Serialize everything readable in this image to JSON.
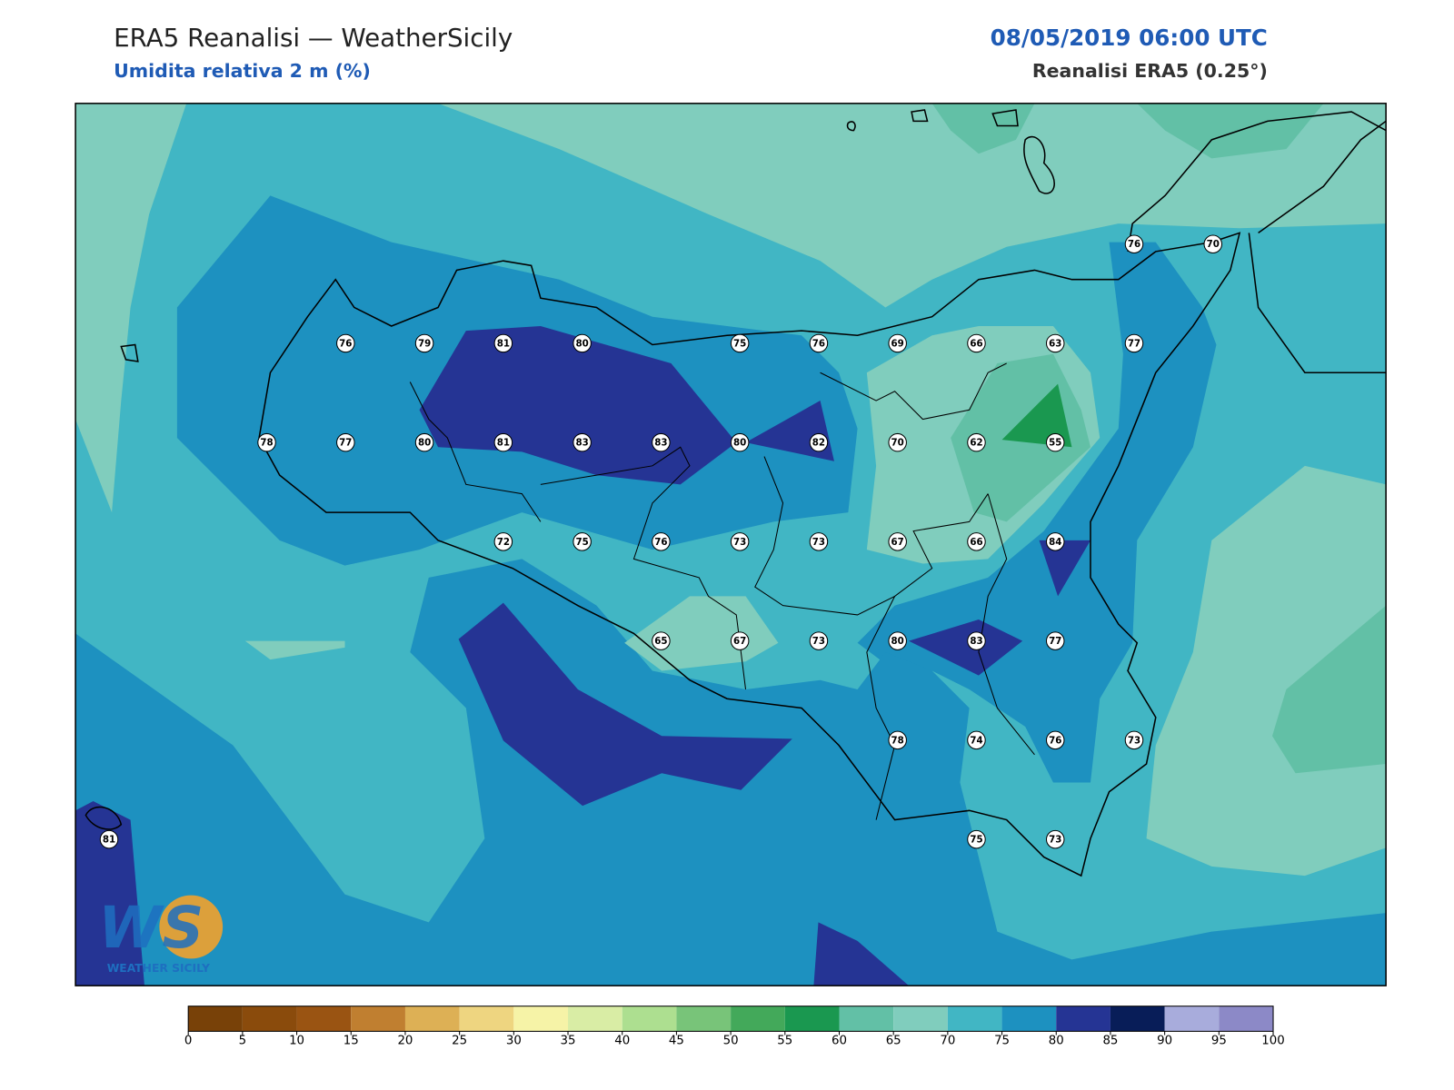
{
  "header": {
    "title": "ERA5 Reanalisi — WeatherSicily",
    "subtitle": "Umidita relativa 2 m (%)",
    "date": "08/05/2019 06:00 UTC",
    "source": "Reanalisi ERA5 (0.25°)"
  },
  "points": [
    [
      null,
      null,
      null,
      null,
      null,
      null,
      null,
      null,
      null,
      null,
      null,
      null,
      null,
      76,
      70
    ],
    [
      null,
      null,
      null,
      76,
      79,
      81,
      80,
      null,
      75,
      76,
      69,
      66,
      63,
      77,
      null
    ],
    [
      null,
      null,
      78,
      77,
      80,
      81,
      83,
      83,
      80,
      82,
      70,
      62,
      55,
      null,
      null
    ],
    [
      null,
      null,
      null,
      null,
      null,
      72,
      75,
      76,
      73,
      73,
      67,
      66,
      84,
      null,
      null
    ],
    [
      null,
      null,
      null,
      null,
      null,
      null,
      null,
      65,
      67,
      73,
      80,
      83,
      77,
      null,
      null
    ],
    [
      null,
      null,
      null,
      null,
      null,
      null,
      null,
      null,
      null,
      null,
      78,
      74,
      76,
      73,
      null
    ],
    [
      81,
      null,
      null,
      null,
      null,
      null,
      null,
      null,
      null,
      null,
      null,
      75,
      73,
      null,
      null
    ]
  ],
  "colorbar": {
    "ticks": [
      0,
      5,
      10,
      15,
      20,
      25,
      30,
      35,
      40,
      45,
      50,
      55,
      60,
      65,
      70,
      75,
      80,
      85,
      90,
      95,
      100
    ],
    "colors": [
      "#784108",
      "#8a4b0c",
      "#9a5412",
      "#c07f30",
      "#ddb055",
      "#eed580",
      "#f6f3a7",
      "#d9eda5",
      "#addf90",
      "#78c479",
      "#43a95a",
      "#1a9850",
      "#62c0a6",
      "#80cdbd",
      "#41b6c4",
      "#1d91c0",
      "#253494",
      "#081d58",
      "#a8acdc",
      "#8c89c7"
    ]
  },
  "logo": {
    "mark": "WS",
    "caption": "WEATHER SICILY"
  }
}
